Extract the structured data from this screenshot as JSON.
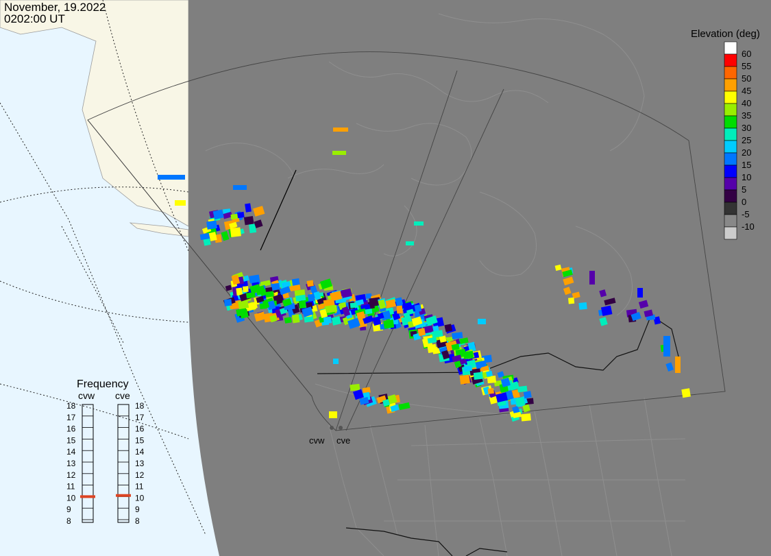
{
  "header": {
    "date": "November, 19.2022",
    "time": "0202:00 UT"
  },
  "colorbar": {
    "title": "Elevation (deg)",
    "entries": [
      {
        "label": "60",
        "color": "#ffffff"
      },
      {
        "label": "55",
        "color": "#ff0000"
      },
      {
        "label": "50",
        "color": "#ff6600"
      },
      {
        "label": "45",
        "color": "#ffa000"
      },
      {
        "label": "40",
        "color": "#ffff00"
      },
      {
        "label": "35",
        "color": "#99ee00"
      },
      {
        "label": "30",
        "color": "#00dd00"
      },
      {
        "label": "25",
        "color": "#00eebb"
      },
      {
        "label": "20",
        "color": "#00ccff"
      },
      {
        "label": "15",
        "color": "#0077ff"
      },
      {
        "label": "10",
        "color": "#0000ff"
      },
      {
        "label": "5",
        "color": "#5500aa"
      },
      {
        "label": "0",
        "color": "#330044"
      },
      {
        "label": "-5",
        "color": "#333333"
      },
      {
        "label": "-10",
        "color": "#888888"
      },
      {
        "label": "",
        "color": "#cccccc"
      }
    ]
  },
  "frequency": {
    "title": "Frequency",
    "radars": [
      {
        "name": "cvw",
        "value": 10.5
      },
      {
        "name": "cve",
        "value": 10.6
      }
    ],
    "ticks": [
      "18",
      "17",
      "16",
      "15",
      "14",
      "13",
      "12",
      "11",
      "10",
      "9",
      "8"
    ]
  },
  "stations": [
    "cvw",
    "cve"
  ],
  "colors": {
    "map_fill": "#7f7f7f",
    "ocean": "#e8f6ff",
    "land_outside": "#f8f6e6",
    "marker": "#dd4422"
  }
}
